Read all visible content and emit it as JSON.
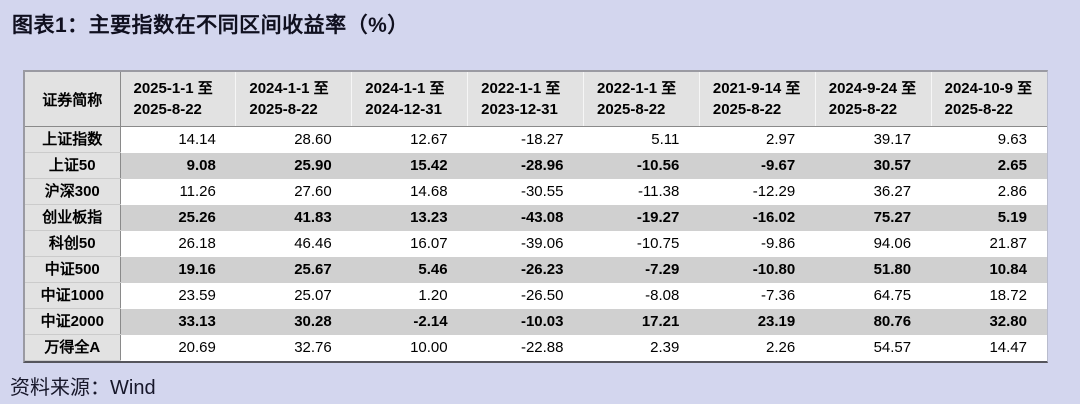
{
  "title": "图表1：主要指数在不同区间收益率（%）",
  "source": "资料来源：Wind",
  "colors": {
    "page_bg": "#d3d6ee",
    "header_bg": "#e2e2e2",
    "stripe_bg": "#d0d0d0",
    "row_bg": "#ffffff",
    "border_gray": "#9a9aa2",
    "border_dark": "#55555c",
    "title_text": "#10101f"
  },
  "chart_data": {
    "type": "table",
    "title": "图表1：主要指数在不同区间收益率（%）",
    "units": "%",
    "corner_header": "证券简称",
    "columns": [
      {
        "line1": "2025-1-1 至",
        "line2": "2025-8-22"
      },
      {
        "line1": "2024-1-1 至",
        "line2": "2025-8-22"
      },
      {
        "line1": "2024-1-1 至",
        "line2": "2024-12-31"
      },
      {
        "line1": "2022-1-1 至",
        "line2": "2023-12-31"
      },
      {
        "line1": "2022-1-1 至",
        "line2": "2025-8-22"
      },
      {
        "line1": "2021-9-14 至",
        "line2": "2025-8-22"
      },
      {
        "line1": "2024-9-24 至",
        "line2": "2025-8-22"
      },
      {
        "line1": "2024-10-9 至",
        "line2": "2025-8-22"
      }
    ],
    "rows": [
      {
        "name": "上证指数",
        "values": [
          "14.14",
          "28.60",
          "12.67",
          "-18.27",
          "5.11",
          "2.97",
          "39.17",
          "9.63"
        ]
      },
      {
        "name": "上证50",
        "values": [
          "9.08",
          "25.90",
          "15.42",
          "-28.96",
          "-10.56",
          "-9.67",
          "30.57",
          "2.65"
        ]
      },
      {
        "name": "沪深300",
        "values": [
          "11.26",
          "27.60",
          "14.68",
          "-30.55",
          "-11.38",
          "-12.29",
          "36.27",
          "2.86"
        ]
      },
      {
        "name": "创业板指",
        "values": [
          "25.26",
          "41.83",
          "13.23",
          "-43.08",
          "-19.27",
          "-16.02",
          "75.27",
          "5.19"
        ]
      },
      {
        "name": "科创50",
        "values": [
          "26.18",
          "46.46",
          "16.07",
          "-39.06",
          "-10.75",
          "-9.86",
          "94.06",
          "21.87"
        ]
      },
      {
        "name": "中证500",
        "values": [
          "19.16",
          "25.67",
          "5.46",
          "-26.23",
          "-7.29",
          "-10.80",
          "51.80",
          "10.84"
        ]
      },
      {
        "name": "中证1000",
        "values": [
          "23.59",
          "25.07",
          "1.20",
          "-26.50",
          "-8.08",
          "-7.36",
          "64.75",
          "18.72"
        ]
      },
      {
        "name": "中证2000",
        "values": [
          "33.13",
          "30.28",
          "-2.14",
          "-10.03",
          "17.21",
          "23.19",
          "80.76",
          "32.80"
        ]
      },
      {
        "name": "万得全A",
        "values": [
          "20.69",
          "32.76",
          "10.00",
          "-22.88",
          "2.39",
          "2.26",
          "54.57",
          "14.47"
        ]
      }
    ],
    "striped_row_indices": [
      1,
      3,
      5,
      7
    ]
  }
}
